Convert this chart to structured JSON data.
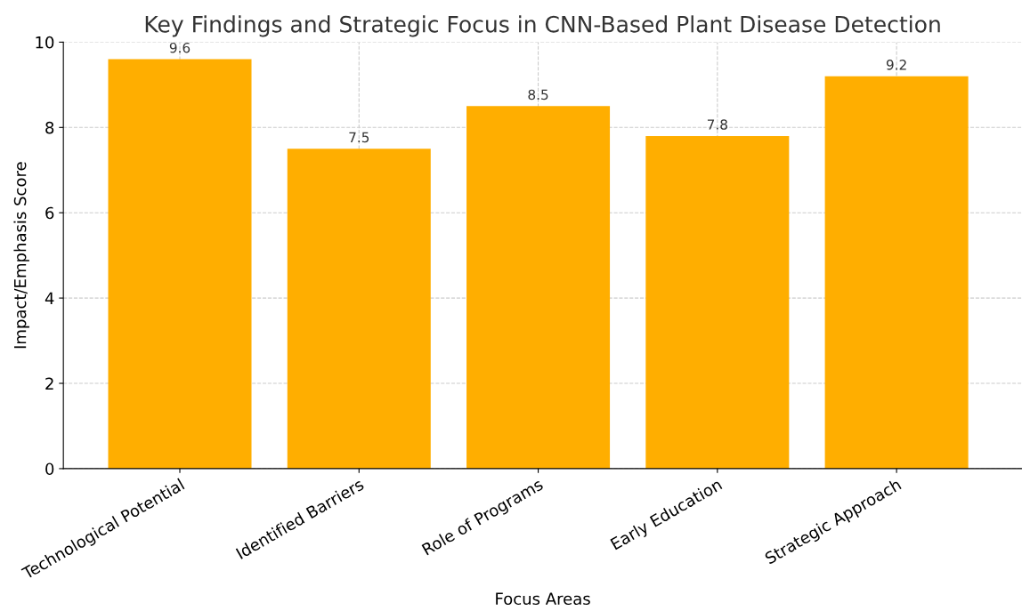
{
  "chart_data": {
    "type": "bar",
    "title": "Key Findings and Strategic Focus in CNN-Based Plant Disease Detection",
    "xlabel": "Focus Areas",
    "ylabel": "Impact/Emphasis Score",
    "categories": [
      "Technological Potential",
      "Identified Barriers",
      "Role of Programs",
      "Early Education",
      "Strategic Approach"
    ],
    "values": [
      9.6,
      7.5,
      8.5,
      7.8,
      9.2
    ],
    "color": "#ffae00",
    "ylim": [
      0,
      10
    ],
    "yticks": [
      0,
      2,
      4,
      6,
      8,
      10
    ],
    "grid": true,
    "data_labels": true
  }
}
